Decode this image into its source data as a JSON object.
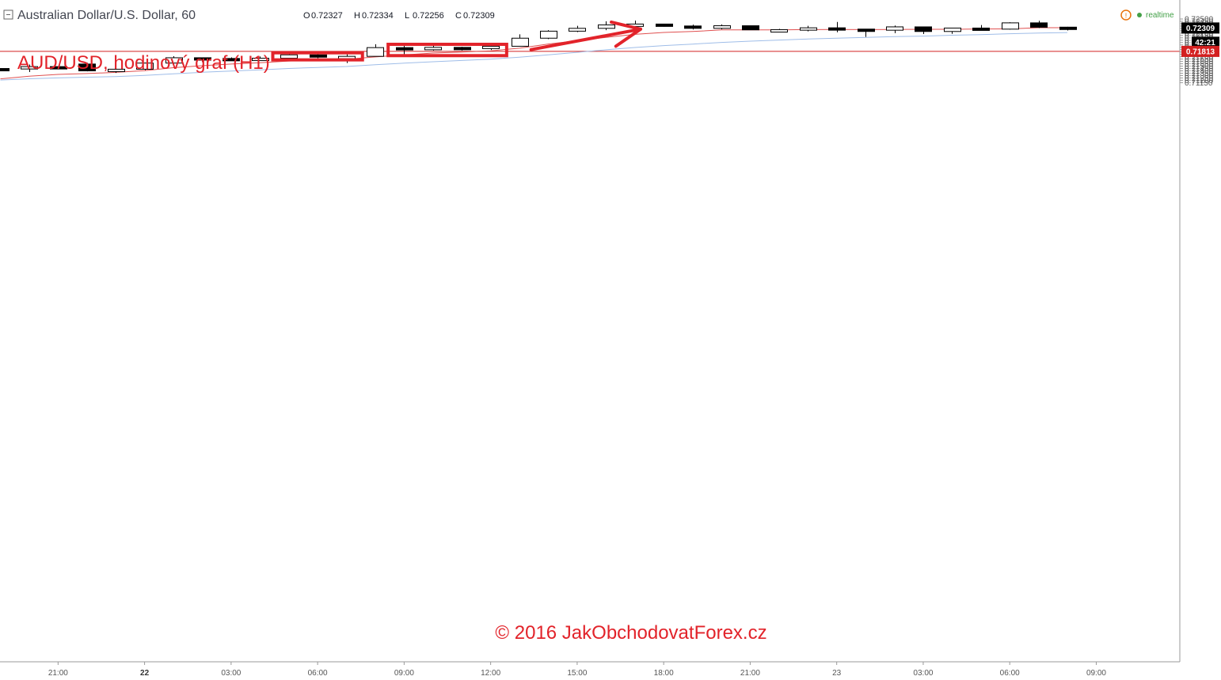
{
  "header": {
    "symbol": "Australian Dollar/U.S. Dollar, 60",
    "ohlc": [
      {
        "k": "O",
        "v": "0.72327"
      },
      {
        "k": "H",
        "v": "0.72334"
      },
      {
        "k": "L",
        "v": "0.72256"
      },
      {
        "k": "C",
        "v": "0.72309"
      }
    ],
    "realtime_label": "realtime"
  },
  "annotation": {
    "title": "AUD/USD, hodinový graf (H1)",
    "copyright": "© 2016 JakObchodovatForex.cz"
  },
  "badges": {
    "last_price": "0.72309",
    "countdown": "42:21",
    "level_price": "0.71813"
  },
  "colors": {
    "bull_body": "#ffffff",
    "bear_body": "#000000",
    "ma_fast": "#e05050",
    "ma_slow": "#9fbde8",
    "level_line": "#d32020",
    "annotation": "#e2232a"
  },
  "chart_data": {
    "type": "candlestick",
    "yrange": [
      0.7113,
      0.7253
    ],
    "y_ticks": [
      "0.72500",
      "0.72450",
      "0.72400",
      "0.72350",
      "0.72300",
      "0.72250",
      "0.72200",
      "0.72150",
      "0.72100",
      "0.72050",
      "0.72000",
      "0.71950",
      "0.71900",
      "0.71850",
      "0.71800",
      "0.71750",
      "0.71700",
      "0.71650",
      "0.71600",
      "0.71550",
      "0.71500",
      "0.71450",
      "0.71400",
      "0.71350",
      "0.71300",
      "0.71250",
      "0.71200",
      "0.71150"
    ],
    "x_ticks": [
      {
        "label": "21:00",
        "bar": 2
      },
      {
        "label": "22",
        "bar": 5,
        "bold": true
      },
      {
        "label": "03:00",
        "bar": 8
      },
      {
        "label": "06:00",
        "bar": 11
      },
      {
        "label": "09:00",
        "bar": 14
      },
      {
        "label": "12:00",
        "bar": 17
      },
      {
        "label": "15:00",
        "bar": 20
      },
      {
        "label": "18:00",
        "bar": 23
      },
      {
        "label": "21:00",
        "bar": 26
      },
      {
        "label": "23",
        "bar": 29
      },
      {
        "label": "03:00",
        "bar": 32
      },
      {
        "label": "06:00",
        "bar": 35
      },
      {
        "label": "09:00",
        "bar": 38
      }
    ],
    "candles": [
      {
        "o": 0.7145,
        "h": 0.71455,
        "l": 0.7142,
        "c": 0.71425
      },
      {
        "o": 0.7145,
        "h": 0.71535,
        "l": 0.71375,
        "c": 0.7149
      },
      {
        "o": 0.7149,
        "h": 0.71495,
        "l": 0.7145,
        "c": 0.7145
      },
      {
        "o": 0.71545,
        "h": 0.7157,
        "l": 0.7139,
        "c": 0.714
      },
      {
        "o": 0.714,
        "h": 0.71455,
        "l": 0.71355,
        "c": 0.71435
      },
      {
        "o": 0.71435,
        "h": 0.71575,
        "l": 0.71415,
        "c": 0.71565
      },
      {
        "o": 0.71565,
        "h": 0.7171,
        "l": 0.71555,
        "c": 0.71678
      },
      {
        "o": 0.71678,
        "h": 0.7168,
        "l": 0.7159,
        "c": 0.71663
      },
      {
        "o": 0.71663,
        "h": 0.71685,
        "l": 0.71625,
        "c": 0.7166
      },
      {
        "o": 0.7166,
        "h": 0.71705,
        "l": 0.71625,
        "c": 0.71668
      },
      {
        "o": 0.71668,
        "h": 0.71785,
        "l": 0.7165,
        "c": 0.7174
      },
      {
        "o": 0.7174,
        "h": 0.7176,
        "l": 0.71668,
        "c": 0.71698
      },
      {
        "o": 0.71698,
        "h": 0.7175,
        "l": 0.71565,
        "c": 0.71708
      },
      {
        "o": 0.71708,
        "h": 0.71965,
        "l": 0.71702,
        "c": 0.71893
      },
      {
        "o": 0.71893,
        "h": 0.7193,
        "l": 0.7174,
        "c": 0.7188
      },
      {
        "o": 0.7188,
        "h": 0.7195,
        "l": 0.7183,
        "c": 0.71898
      },
      {
        "o": 0.71898,
        "h": 0.7191,
        "l": 0.7183,
        "c": 0.7188
      },
      {
        "o": 0.71882,
        "h": 0.7195,
        "l": 0.71842,
        "c": 0.71922
      },
      {
        "o": 0.71922,
        "h": 0.72175,
        "l": 0.7192,
        "c": 0.72093
      },
      {
        "o": 0.72093,
        "h": 0.72262,
        "l": 0.72073,
        "c": 0.72242
      },
      {
        "o": 0.72242,
        "h": 0.72355,
        "l": 0.72222,
        "c": 0.72302
      },
      {
        "o": 0.72302,
        "h": 0.72452,
        "l": 0.72262,
        "c": 0.72375
      },
      {
        "o": 0.72375,
        "h": 0.72467,
        "l": 0.7236,
        "c": 0.72393
      },
      {
        "o": 0.72393,
        "h": 0.724,
        "l": 0.72338,
        "c": 0.72352
      },
      {
        "o": 0.72352,
        "h": 0.7238,
        "l": 0.72278,
        "c": 0.72302
      },
      {
        "o": 0.72302,
        "h": 0.72385,
        "l": 0.72282,
        "c": 0.72357
      },
      {
        "o": 0.72357,
        "h": 0.72365,
        "l": 0.72265,
        "c": 0.7227
      },
      {
        "o": 0.7227,
        "h": 0.7229,
        "l": 0.7224,
        "c": 0.72273
      },
      {
        "o": 0.72273,
        "h": 0.72355,
        "l": 0.72238,
        "c": 0.72313
      },
      {
        "o": 0.72313,
        "h": 0.72436,
        "l": 0.72218,
        "c": 0.72286
      },
      {
        "o": 0.72286,
        "h": 0.72286,
        "l": 0.7212,
        "c": 0.72262
      },
      {
        "o": 0.72262,
        "h": 0.72362,
        "l": 0.722,
        "c": 0.72333
      },
      {
        "o": 0.72333,
        "h": 0.72335,
        "l": 0.7218,
        "c": 0.72235
      },
      {
        "o": 0.72235,
        "h": 0.7231,
        "l": 0.72185,
        "c": 0.72308
      },
      {
        "o": 0.72308,
        "h": 0.72372,
        "l": 0.72262,
        "c": 0.72285
      },
      {
        "o": 0.72285,
        "h": 0.7243,
        "l": 0.72275,
        "c": 0.72418
      },
      {
        "o": 0.72418,
        "h": 0.72462,
        "l": 0.72308,
        "c": 0.72325
      },
      {
        "o": 0.72327,
        "h": 0.72334,
        "l": 0.72256,
        "c": 0.72309
      }
    ],
    "ma_fast": [
      0.7123,
      0.71288,
      0.71325,
      0.71343,
      0.71368,
      0.71405,
      0.71468,
      0.7151,
      0.71545,
      0.71573,
      0.71608,
      0.7163,
      0.71645,
      0.71695,
      0.71738,
      0.71778,
      0.718,
      0.71825,
      0.7188,
      0.7197,
      0.7204,
      0.7211,
      0.72175,
      0.72215,
      0.72235,
      0.72268,
      0.72268,
      0.7227,
      0.72275,
      0.72277,
      0.72275,
      0.72278,
      0.72282,
      0.72282,
      0.72288,
      0.7229,
      0.72316,
      0.72316
    ],
    "ma_slow": [
      0.71205,
      0.71232,
      0.7125,
      0.71265,
      0.7128,
      0.71305,
      0.71338,
      0.7137,
      0.71395,
      0.7142,
      0.7145,
      0.71473,
      0.71493,
      0.7153,
      0.71563,
      0.71593,
      0.7162,
      0.71648,
      0.7169,
      0.7174,
      0.71793,
      0.71847,
      0.71895,
      0.71935,
      0.71967,
      0.72003,
      0.7203,
      0.72053,
      0.72075,
      0.72093,
      0.72108,
      0.72128,
      0.72138,
      0.72155,
      0.72168,
      0.72188,
      0.72202,
      0.72213
    ],
    "level": 0.71813,
    "boxes": [
      {
        "from_bar": 9.5,
        "to_bar": 12.5,
        "top": 0.71783,
        "bottom": 0.71633
      },
      {
        "from_bar": 13.5,
        "to_bar": 17.5,
        "top": 0.71963,
        "bottom": 0.71723
      }
    ],
    "arrow": {
      "from": {
        "bar": 18.4,
        "price": 0.7185
      },
      "to": {
        "bar": 22.2,
        "price": 0.72285
      }
    }
  }
}
